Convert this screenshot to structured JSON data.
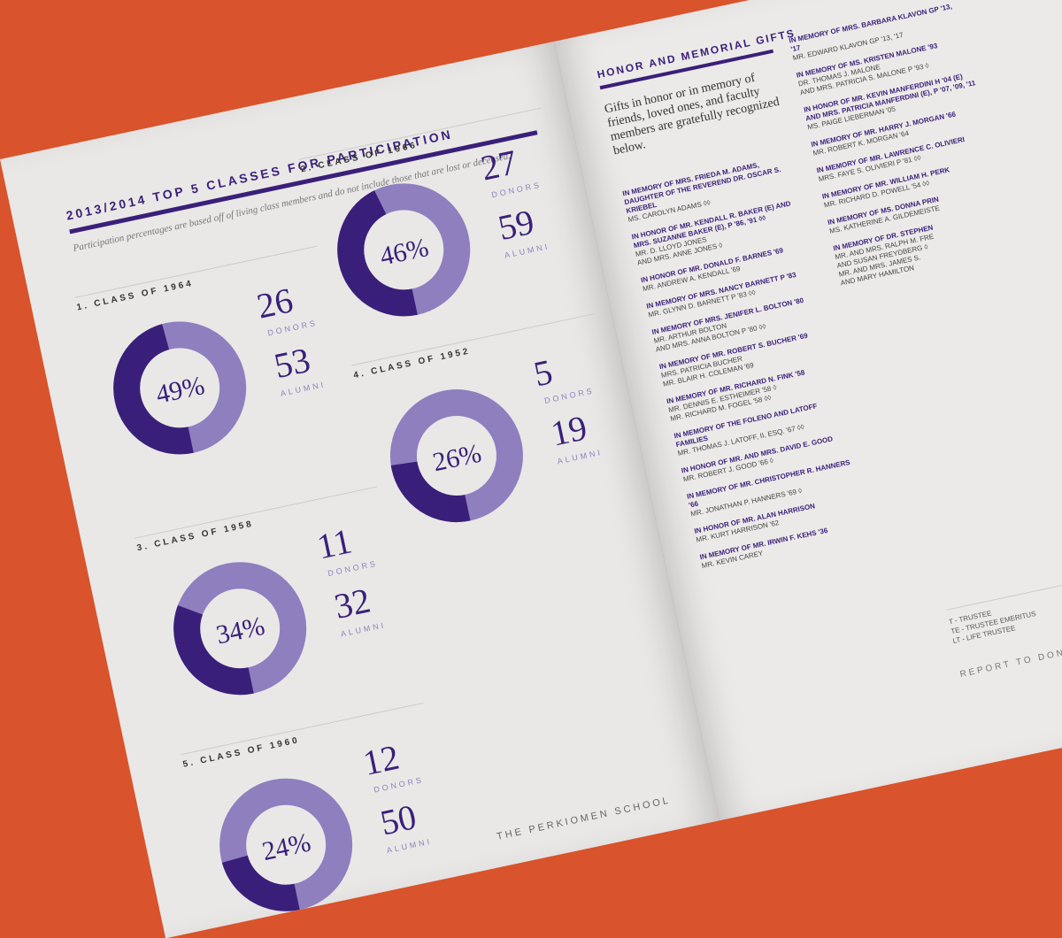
{
  "left_page": {
    "title": "2013/2014 TOP 5 CLASSES FOR PARTICIPATION",
    "subtitle": "Participation percentages are based off of living class members and do not include those that are lost or deceased.",
    "donors_label": "DONORS",
    "alumni_label": "ALUMNI",
    "footer": "THE PERKIOMEN SCHOOL",
    "classes": [
      {
        "label": "1. CLASS OF 1964",
        "participation": {
          "value": 49,
          "label": "49%"
        },
        "donors": 26,
        "alumni": 53
      },
      {
        "label": "2. CLASS OF 1966",
        "participation": {
          "value": 46,
          "label": "46%"
        },
        "donors": 27,
        "alumni": 59
      },
      {
        "label": "3. CLASS OF 1958",
        "participation": {
          "value": 34,
          "label": "34%"
        },
        "donors": 11,
        "alumni": 32
      },
      {
        "label": "4. CLASS OF 1952",
        "participation": {
          "value": 26,
          "label": "26%"
        },
        "donors": 5,
        "alumni": 19
      },
      {
        "label": "5. CLASS OF 1960",
        "participation": {
          "value": 24,
          "label": "24%"
        },
        "donors": 12,
        "alumni": 50
      }
    ]
  },
  "right_page": {
    "title": "HONOR AND MEMORIAL GIFTS",
    "intro": "Gifts in honor or in memory of friends, loved ones, and faculty members are gratefully recognized below.",
    "columns": [
      [
        {
          "heading": "IN MEMORY OF MRS. FRIEDA M. ADAMS, DAUGHTER OF THE REVEREND DR. OSCAR S. KRIEBEL",
          "donors": [
            "MS. CAROLYN ADAMS ◊◊"
          ]
        },
        {
          "heading": "IN HONOR OF MR. KENDALL R. BAKER (E) AND MRS. SUZANNE BAKER (E), P '86, '91 ◊◊",
          "donors": [
            "MR. D. LLOYD JONES",
            "AND MRS. ANNE JONES ◊"
          ]
        },
        {
          "heading": "IN HONOR OF MR. DONALD F. BARNES '69",
          "donors": [
            "MR. ANDREW A. KENDALL '69"
          ]
        },
        {
          "heading": "IN MEMORY OF MRS. NANCY BARNETT P '83",
          "donors": [
            "MR. GLYNN D. BARNETT P '83 ◊◊"
          ]
        },
        {
          "heading": "IN MEMORY OF MRS. JENIFER L. BOLTON '80",
          "donors": [
            "MR. ARTHUR BOLTON",
            "AND MRS. ANNA BOLTON P '80 ◊◊"
          ]
        },
        {
          "heading": "IN MEMORY OF MR. ROBERT S. BUCHER '69",
          "donors": [
            "MRS. PATRICIA BUCHER",
            "MR. BLAIR H. COLEMAN '69"
          ]
        },
        {
          "heading": "IN MEMORY OF MR. RICHARD N. FINK '58",
          "donors": [
            "MR. DENNIS E. ESTHEIMER '58 ◊",
            "MR. RICHARD M. FOGEL '58 ◊◊"
          ]
        },
        {
          "heading": "IN MEMORY OF THE FOLENO AND LATOFF FAMILIES",
          "donors": [
            "MR. THOMAS J. LATOFF, II, ESQ. '67 ◊◊"
          ]
        },
        {
          "heading": "IN HONOR OF MR. AND MRS. DAVID E. GOOD",
          "donors": [
            "MR. ROBERT J. GOOD '66 ◊"
          ]
        },
        {
          "heading": "IN MEMORY OF MR. CHRISTOPHER R. HANNERS '66",
          "donors": [
            "MR. JONATHAN P. HANNERS '69 ◊"
          ]
        },
        {
          "heading": "IN HONOR OF MR. ALAN HARRISON",
          "donors": [
            "MR. KURT HARRISON '62"
          ]
        },
        {
          "heading": "IN MEMORY OF MR. IRWIN F. KEHS '36",
          "donors": [
            "MR. KEVIN CAREY"
          ]
        }
      ],
      [
        {
          "heading": "IN MEMORY OF MRS. BARBARA KLAVON GP '13, '17",
          "donors": [
            "MR. EDWARD KLAVON GP '13, '17"
          ]
        },
        {
          "heading": "IN MEMORY OF MS. KRISTEN MALONE '93",
          "donors": [
            "DR. THOMAS J. MALONE",
            "AND MRS. PATRICIA S. MALONE P '93 ◊"
          ]
        },
        {
          "heading": "IN HONOR OF MR. KEVIN MANFERDINI H '04 (E) AND MRS. PATRICIA MANFERDINI (E), P '07, '09, '11",
          "donors": [
            "MS. PAIGE LIEBERMAN '05"
          ]
        },
        {
          "heading": "IN MEMORY OF MR. HARRY J. MORGAN '66",
          "donors": [
            "MR. ROBERT K. MORGAN '64"
          ]
        },
        {
          "heading": "IN MEMORY OF MR. LAWRENCE C. OLIVIERI",
          "donors": [
            "MRS. FAYE S. OLIVIERI P '81 ◊◊"
          ]
        },
        {
          "heading": "IN MEMORY OF MR. WILLIAM H. PERK",
          "donors": [
            "MR. RICHARD D. POWELL '54 ◊◊"
          ]
        },
        {
          "heading": "IN MEMORY OF MS. DONNA PRIN",
          "donors": [
            "MS. KATHERINE A. GILDEMEISTE"
          ]
        },
        {
          "heading": "IN MEMORY OF DR. STEPHEN",
          "donors": [
            "MR. AND MRS. RALPH M. FRE",
            "AND SUSAN FREYDBERG ◊",
            "MR. AND MRS. JAMES S.",
            "AND MARY HAMILTON"
          ]
        }
      ]
    ],
    "legend": [
      "T - TRUSTEE",
      "TE - TRUSTEE EMERITUS",
      "LT - LIFE TRUSTEE"
    ],
    "footer": "REPORT TO DON"
  }
}
